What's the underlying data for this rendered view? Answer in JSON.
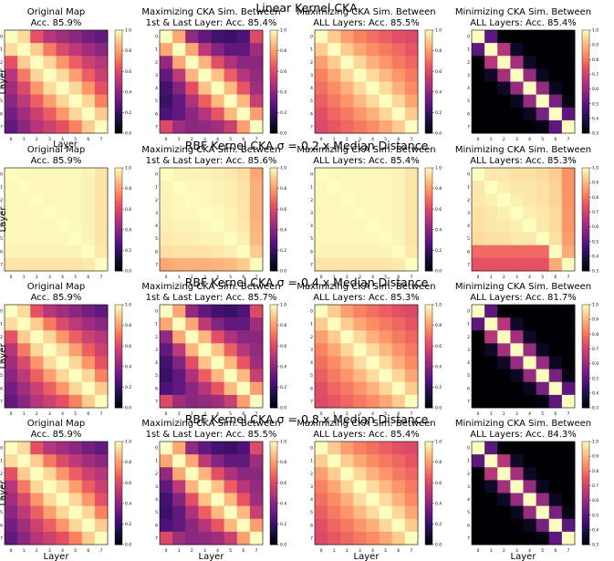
{
  "layer_label": "Layer",
  "panel_columns": [
    "Original Map",
    "Maximizing CKA Sim. Between 1st & Last Layer",
    "Maximizing CKA Sim. Between ALL Layers",
    "Minimizing CKA Sim. Between ALL Layers"
  ],
  "chart_data": [
    {
      "type": "heatmap",
      "row_title": "Linear Kernel CKA",
      "panels": [
        {
          "title_line1": "Original Map",
          "title_line2": "Acc. 85.9%",
          "profile": "original",
          "colorbar": {
            "min": 0.0,
            "max": 1.0,
            "ticks": [
              "0.0",
              "0.2",
              "0.4",
              "0.6",
              "0.8",
              "1.0"
            ]
          }
        },
        {
          "title_line1": "Maximizing CKA Sim. Between",
          "title_line2": "1st & Last Layer: Acc. 85.4%",
          "profile": "maxfirstlast",
          "colorbar": {
            "min": 0.0,
            "max": 1.0,
            "ticks": [
              "0.0",
              "0.2",
              "0.4",
              "0.6",
              "0.8",
              "1.0"
            ]
          }
        },
        {
          "title_line1": "Maximizing CKA Sim. Between",
          "title_line2": "ALL Layers: Acc. 85.5%",
          "profile": "maxall",
          "colorbar": {
            "min": 0.0,
            "max": 1.0,
            "ticks": [
              "0.0",
              "0.2",
              "0.4",
              "0.6",
              "0.8",
              "1.0"
            ]
          }
        },
        {
          "title_line1": "Minimizing CKA Sim. Between",
          "title_line2": "ALL Layers: Acc. 85.4%",
          "profile": "minall",
          "colorbar": {
            "min": 0.3,
            "max": 1.0,
            "ticks": [
              "0.3",
              "0.4",
              "0.5",
              "0.6",
              "0.7",
              "0.8",
              "0.9",
              "1.0"
            ]
          }
        }
      ]
    },
    {
      "type": "heatmap",
      "row_title": "RBF Kernel CKA σ = 0.2 x Median Distance",
      "panels": [
        {
          "title_line1": "Original Map",
          "title_line2": "Acc. 85.9%",
          "profile": "flat",
          "colorbar": {
            "min": 0.0,
            "max": 1.0,
            "ticks": [
              "0.0",
              "0.2",
              "0.4",
              "0.6",
              "0.8",
              "1.0"
            ]
          }
        },
        {
          "title_line1": "Maximizing CKA Sim. Between",
          "title_line2": "1st & Last Layer: Acc. 85.6%",
          "profile": "flatedge",
          "colorbar": {
            "min": 0.0,
            "max": 1.0,
            "ticks": [
              "0.0",
              "0.2",
              "0.4",
              "0.6",
              "0.8",
              "1.0"
            ]
          }
        },
        {
          "title_line1": "Maximizing CKA Sim. Between",
          "title_line2": "ALL Layers: Acc. 85.4%",
          "profile": "flat",
          "colorbar": {
            "min": 0.0,
            "max": 1.0,
            "ticks": [
              "0.0",
              "0.2",
              "0.4",
              "0.6",
              "0.8",
              "1.0"
            ]
          }
        },
        {
          "title_line1": "Minimizing CKA Sim. Between",
          "title_line2": "ALL Layers: Acc. 85.3%",
          "profile": "flatedgemin",
          "colorbar": {
            "min": 0.3,
            "max": 1.0,
            "ticks": [
              "0.3",
              "0.4",
              "0.5",
              "0.6",
              "0.7",
              "0.8",
              "0.9",
              "1.0"
            ]
          }
        }
      ]
    },
    {
      "type": "heatmap",
      "row_title": "RBF Kernel CKA σ = 0.4 x Median Distance",
      "panels": [
        {
          "title_line1": "Original Map",
          "title_line2": "Acc. 85.9%",
          "profile": "original",
          "colorbar": {
            "min": 0.0,
            "max": 1.0,
            "ticks": [
              "0.0",
              "0.2",
              "0.4",
              "0.6",
              "0.8",
              "1.0"
            ]
          }
        },
        {
          "title_line1": "Maximizing CKA Sim. Between",
          "title_line2": "1st & Last Layer: Acc. 85.7%",
          "profile": "maxfirstlast",
          "colorbar": {
            "min": 0.0,
            "max": 1.0,
            "ticks": [
              "0.0",
              "0.2",
              "0.4",
              "0.6",
              "0.8",
              "1.0"
            ]
          }
        },
        {
          "title_line1": "Maximizing CKA Sim. Between",
          "title_line2": "ALL Layers: Acc. 85.3%",
          "profile": "maxall",
          "colorbar": {
            "min": 0.0,
            "max": 1.0,
            "ticks": [
              "0.0",
              "0.2",
              "0.4",
              "0.6",
              "0.8",
              "1.0"
            ]
          }
        },
        {
          "title_line1": "Minimizing CKA Sim. Between",
          "title_line2": "ALL Layers: Acc. 81.7%",
          "profile": "minall",
          "colorbar": {
            "min": 0.3,
            "max": 1.0,
            "ticks": [
              "0.3",
              "0.4",
              "0.5",
              "0.6",
              "0.7",
              "0.8",
              "0.9",
              "1.0"
            ]
          }
        }
      ]
    },
    {
      "type": "heatmap",
      "row_title": "RBF Kernel CKA σ = 0.8 x Median Distance",
      "panels": [
        {
          "title_line1": "Original Map",
          "title_line2": "Acc. 85.9%",
          "profile": "original",
          "colorbar": {
            "min": 0.0,
            "max": 1.0,
            "ticks": [
              "0.0",
              "0.2",
              "0.4",
              "0.6",
              "0.8",
              "1.0"
            ]
          }
        },
        {
          "title_line1": "Maximizing CKA Sim. Between",
          "title_line2": "1st & Last Layer: Acc. 85.5%",
          "profile": "maxfirstlast",
          "colorbar": {
            "min": 0.0,
            "max": 1.0,
            "ticks": [
              "0.0",
              "0.2",
              "0.4",
              "0.6",
              "0.8",
              "1.0"
            ]
          }
        },
        {
          "title_line1": "Maximizing CKA Sim. Between",
          "title_line2": "ALL Layers: Acc. 85.4%",
          "profile": "maxall",
          "colorbar": {
            "min": 0.0,
            "max": 1.0,
            "ticks": [
              "0.0",
              "0.2",
              "0.4",
              "0.6",
              "0.8",
              "1.0"
            ]
          }
        },
        {
          "title_line1": "Minimizing CKA Sim. Between",
          "title_line2": "ALL Layers: Acc. 84.3%",
          "profile": "minall",
          "colorbar": {
            "min": 0.3,
            "max": 1.0,
            "ticks": [
              "0.3",
              "0.4",
              "0.5",
              "0.6",
              "0.7",
              "0.8",
              "0.9",
              "1.0"
            ]
          }
        }
      ]
    }
  ],
  "layer_ticks": [
    "0",
    "1",
    "2",
    "3",
    "4",
    "5",
    "6",
    "7"
  ],
  "profiles": {
    "original": [
      [
        1.0,
        0.93,
        0.63,
        0.5,
        0.45,
        0.4,
        0.34,
        0.3
      ],
      [
        0.93,
        1.0,
        0.9,
        0.72,
        0.6,
        0.52,
        0.45,
        0.4
      ],
      [
        0.63,
        0.9,
        1.0,
        0.92,
        0.78,
        0.66,
        0.56,
        0.5
      ],
      [
        0.5,
        0.72,
        0.92,
        1.0,
        0.93,
        0.8,
        0.66,
        0.56
      ],
      [
        0.45,
        0.6,
        0.78,
        0.93,
        1.0,
        0.92,
        0.78,
        0.63
      ],
      [
        0.4,
        0.52,
        0.66,
        0.8,
        0.92,
        1.0,
        0.92,
        0.74
      ],
      [
        0.34,
        0.45,
        0.56,
        0.66,
        0.78,
        0.92,
        1.0,
        0.9
      ],
      [
        0.3,
        0.4,
        0.5,
        0.56,
        0.63,
        0.74,
        0.9,
        1.0
      ]
    ],
    "maxfirstlast": [
      [
        1.0,
        0.82,
        0.42,
        0.3,
        0.22,
        0.2,
        0.25,
        0.6
      ],
      [
        0.82,
        1.0,
        0.82,
        0.52,
        0.38,
        0.3,
        0.3,
        0.45
      ],
      [
        0.42,
        0.82,
        1.0,
        0.85,
        0.62,
        0.48,
        0.4,
        0.4
      ],
      [
        0.3,
        0.52,
        0.85,
        1.0,
        0.88,
        0.66,
        0.5,
        0.42
      ],
      [
        0.22,
        0.38,
        0.62,
        0.88,
        1.0,
        0.86,
        0.64,
        0.45
      ],
      [
        0.2,
        0.3,
        0.48,
        0.66,
        0.86,
        1.0,
        0.86,
        0.55
      ],
      [
        0.25,
        0.3,
        0.4,
        0.5,
        0.64,
        0.86,
        1.0,
        0.8
      ],
      [
        0.6,
        0.45,
        0.4,
        0.42,
        0.45,
        0.55,
        0.8,
        1.0
      ]
    ],
    "maxall": [
      [
        1.0,
        0.9,
        0.8,
        0.74,
        0.7,
        0.66,
        0.62,
        0.6
      ],
      [
        0.9,
        1.0,
        0.9,
        0.82,
        0.76,
        0.72,
        0.68,
        0.64
      ],
      [
        0.8,
        0.9,
        1.0,
        0.92,
        0.84,
        0.78,
        0.72,
        0.68
      ],
      [
        0.74,
        0.82,
        0.92,
        1.0,
        0.93,
        0.86,
        0.78,
        0.72
      ],
      [
        0.7,
        0.76,
        0.84,
        0.93,
        1.0,
        0.93,
        0.84,
        0.76
      ],
      [
        0.66,
        0.72,
        0.78,
        0.86,
        0.93,
        1.0,
        0.92,
        0.82
      ],
      [
        0.62,
        0.68,
        0.72,
        0.78,
        0.84,
        0.92,
        1.0,
        0.9
      ],
      [
        0.6,
        0.64,
        0.68,
        0.72,
        0.76,
        0.82,
        0.9,
        1.0
      ]
    ],
    "minall": [
      [
        1.0,
        0.5,
        0.3,
        0.3,
        0.3,
        0.3,
        0.3,
        0.3
      ],
      [
        0.5,
        1.0,
        0.65,
        0.35,
        0.3,
        0.3,
        0.3,
        0.3
      ],
      [
        0.3,
        0.65,
        1.0,
        0.62,
        0.35,
        0.3,
        0.3,
        0.3
      ],
      [
        0.3,
        0.35,
        0.62,
        1.0,
        0.6,
        0.34,
        0.3,
        0.3
      ],
      [
        0.3,
        0.3,
        0.35,
        0.6,
        1.0,
        0.6,
        0.34,
        0.3
      ],
      [
        0.3,
        0.3,
        0.3,
        0.34,
        0.6,
        1.0,
        0.55,
        0.32
      ],
      [
        0.3,
        0.3,
        0.3,
        0.3,
        0.34,
        0.55,
        1.0,
        0.5
      ],
      [
        0.3,
        0.3,
        0.3,
        0.3,
        0.3,
        0.32,
        0.5,
        1.0
      ]
    ],
    "flat": [
      [
        1.0,
        0.99,
        0.99,
        0.99,
        0.99,
        0.99,
        0.98,
        0.95
      ],
      [
        0.99,
        1.0,
        0.99,
        0.99,
        0.99,
        0.99,
        0.98,
        0.95
      ],
      [
        0.99,
        0.99,
        1.0,
        0.99,
        0.99,
        0.99,
        0.98,
        0.95
      ],
      [
        0.99,
        0.99,
        0.99,
        1.0,
        0.99,
        0.99,
        0.98,
        0.95
      ],
      [
        0.99,
        0.99,
        0.99,
        0.99,
        1.0,
        0.99,
        0.98,
        0.95
      ],
      [
        0.99,
        0.99,
        0.99,
        0.99,
        0.99,
        1.0,
        0.98,
        0.95
      ],
      [
        0.98,
        0.98,
        0.98,
        0.98,
        0.98,
        0.98,
        1.0,
        0.96
      ],
      [
        0.95,
        0.95,
        0.95,
        0.95,
        0.95,
        0.95,
        0.96,
        1.0
      ]
    ],
    "flatedge": [
      [
        1.0,
        0.98,
        0.98,
        0.98,
        0.97,
        0.96,
        0.94,
        0.82
      ],
      [
        0.98,
        1.0,
        0.99,
        0.99,
        0.98,
        0.97,
        0.95,
        0.84
      ],
      [
        0.98,
        0.99,
        1.0,
        0.99,
        0.98,
        0.97,
        0.95,
        0.84
      ],
      [
        0.98,
        0.99,
        0.99,
        1.0,
        0.99,
        0.98,
        0.95,
        0.84
      ],
      [
        0.97,
        0.98,
        0.98,
        0.99,
        1.0,
        0.98,
        0.96,
        0.85
      ],
      [
        0.96,
        0.97,
        0.97,
        0.98,
        0.98,
        1.0,
        0.97,
        0.86
      ],
      [
        0.94,
        0.95,
        0.95,
        0.95,
        0.96,
        0.97,
        1.0,
        0.9
      ],
      [
        0.82,
        0.84,
        0.84,
        0.84,
        0.85,
        0.86,
        0.9,
        1.0
      ]
    ],
    "flatedgemin": [
      [
        1.0,
        0.97,
        0.97,
        0.96,
        0.96,
        0.95,
        0.93,
        0.84
      ],
      [
        0.97,
        1.0,
        0.98,
        0.97,
        0.97,
        0.96,
        0.94,
        0.84
      ],
      [
        0.97,
        0.98,
        1.0,
        0.98,
        0.97,
        0.96,
        0.94,
        0.84
      ],
      [
        0.96,
        0.97,
        0.98,
        1.0,
        0.98,
        0.97,
        0.95,
        0.85
      ],
      [
        0.96,
        0.97,
        0.97,
        0.98,
        1.0,
        0.97,
        0.95,
        0.85
      ],
      [
        0.95,
        0.96,
        0.96,
        0.97,
        0.97,
        1.0,
        0.96,
        0.86
      ],
      [
        0.78,
        0.78,
        0.78,
        0.78,
        0.78,
        0.78,
        1.0,
        0.88
      ],
      [
        0.74,
        0.74,
        0.74,
        0.74,
        0.74,
        0.74,
        0.88,
        1.0
      ]
    ]
  }
}
